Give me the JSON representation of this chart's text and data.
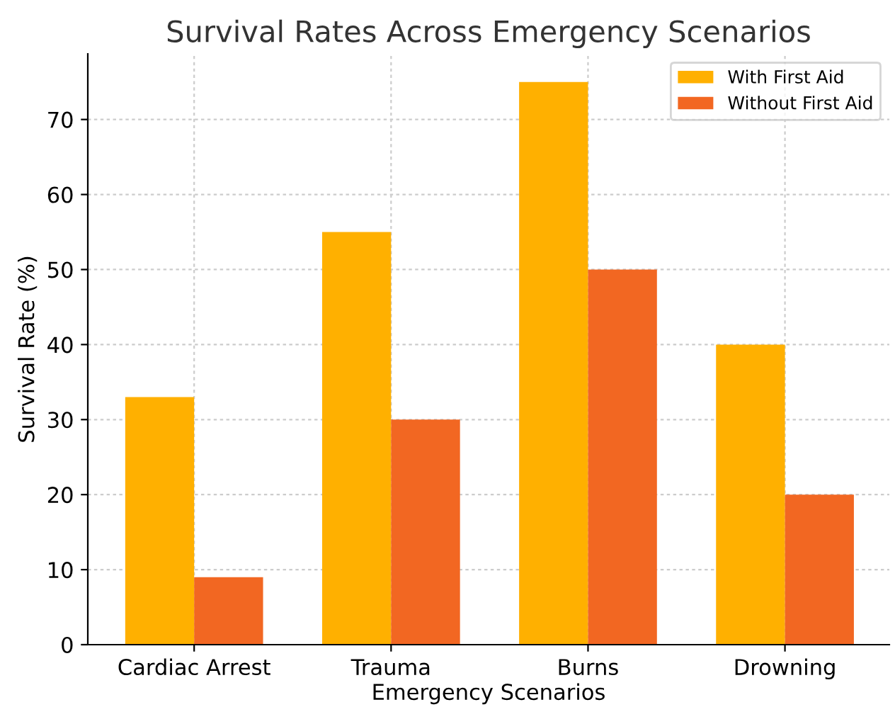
{
  "chart_data": {
    "type": "bar",
    "title": "Survival Rates Across Emergency Scenarios",
    "xlabel": "Emergency Scenarios",
    "ylabel": "Survival Rate (%)",
    "categories": [
      "Cardiac Arrest",
      "Trauma",
      "Burns",
      "Drowning"
    ],
    "series": [
      {
        "name": "With First Aid",
        "color": "#ffb000",
        "values": [
          33,
          55,
          75,
          40
        ]
      },
      {
        "name": "Without First Aid",
        "color": "#f26722",
        "values": [
          9,
          30,
          50,
          20
        ]
      }
    ],
    "ylim": [
      0,
      78.75
    ],
    "yticks": [
      0,
      10,
      20,
      30,
      40,
      50,
      60,
      70
    ],
    "grid": true,
    "legend": "top right"
  }
}
